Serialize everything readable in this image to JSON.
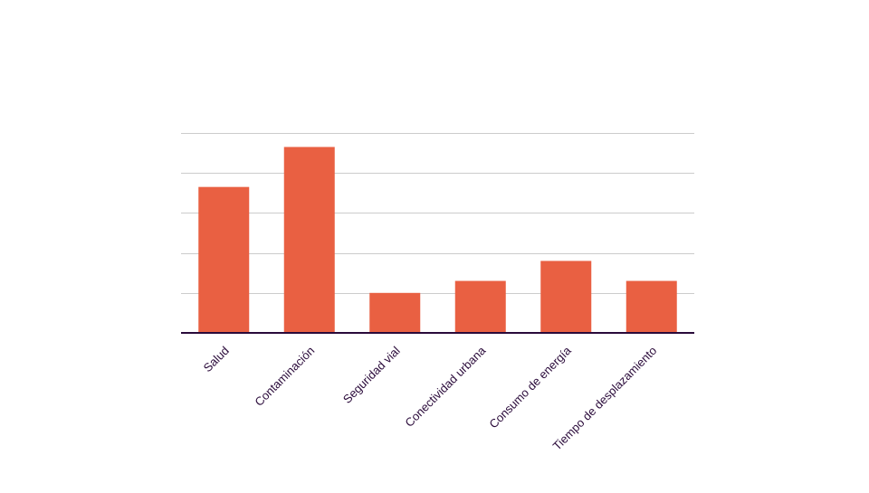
{
  "chart_data": {
    "type": "bar",
    "title": "",
    "xlabel": "",
    "ylabel": "",
    "categories": [
      "Salud",
      "Contaminación",
      "Seguridad vial",
      "Conectividad urbana",
      "Consumo de energía",
      "Tiempo de desplazamiento"
    ],
    "values": [
      7.3,
      9.3,
      2.0,
      2.6,
      3.6,
      2.6
    ],
    "ylim": [
      0,
      10
    ],
    "y_gridlines": [
      2,
      4,
      6,
      8,
      10
    ],
    "grid": true,
    "y_tick_labels_shown": false,
    "legend": "none"
  },
  "colors": {
    "bar": "#E96042",
    "gridline": "#cccccc",
    "baseline": "#2a0a3a",
    "tick_label": "#2a0a3a",
    "background": "#ffffff"
  }
}
